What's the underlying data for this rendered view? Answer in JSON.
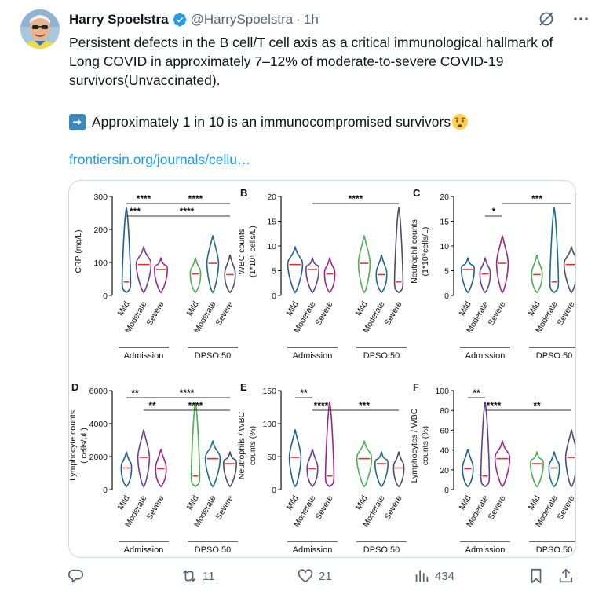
{
  "author": {
    "name": "Harry Spoelstra",
    "handle": "@HarrySpoelstra",
    "separator": "·",
    "time": "1h",
    "avatar_icon": "avatar-photo",
    "verified_icon": "verified-badge-icon"
  },
  "tweet": {
    "text": "Persistent defects in the B cell/T cell axis as a critical immunological hallmark of Long COVID in approximately 7–12% of moderate-to-severe COVID-19 survivors(Unvaccinated).",
    "line2": "Approximately 1 in 10 is an immunocompromised survivors",
    "line2_prefix_icon": "right-arrow-emoji",
    "line2_suffix_icon": "worried-face-emoji",
    "link": "frontiersin.org/journals/cellu…"
  },
  "header_icons": [
    "grok-icon",
    "more-icon"
  ],
  "actions": {
    "reply": {
      "icon": "reply-icon",
      "count": ""
    },
    "retweet": {
      "icon": "retweet-icon",
      "count": "11"
    },
    "like": {
      "icon": "heart-icon",
      "count": "21"
    },
    "views": {
      "icon": "views-icon",
      "count": "434"
    },
    "bookmark": {
      "icon": "bookmark-icon",
      "count": ""
    },
    "share": {
      "icon": "share-icon",
      "count": ""
    }
  },
  "colors": {
    "text": "#0f1419",
    "secondary": "#536471",
    "link": "#1d9bf0",
    "verified": "#1d9bf0",
    "mild": "#1f5f8b",
    "moderate": "#6a3d8f",
    "severe": "#a0238a",
    "dpso_mild": "#4caf50",
    "dpso_moderate": "#1a6b8a",
    "dpso_severe": "#4b4b6b",
    "median": "#e0312e"
  },
  "figure": {
    "categories": [
      "Mild",
      "Moderate",
      "Severe",
      "Mild",
      "Moderate",
      "Severe"
    ],
    "groups": [
      "Admission",
      "DPSO 50"
    ],
    "panels": [
      {
        "letter": "",
        "ylabel": [
          "CRP (mg/L)"
        ],
        "ticks": [
          "300",
          "200",
          "100",
          "0"
        ],
        "sig": [
          {
            "label": "****",
            "from": 0,
            "to": 2,
            "level": 0
          },
          {
            "label": "***",
            "from": 0,
            "to": 1,
            "level": 1
          },
          {
            "label": "****",
            "from": 2,
            "to": 5,
            "level": 0
          },
          {
            "label": "****",
            "from": 1,
            "to": 5,
            "level": 1
          }
        ]
      },
      {
        "letter": "B",
        "ylabel": [
          "WBC counts",
          "(1*10⁹ cells/L)"
        ],
        "ticks": [
          "20",
          "15",
          "10",
          "5",
          "0"
        ],
        "sig": [
          {
            "label": "****",
            "from": 1,
            "to": 5,
            "level": 0
          }
        ]
      },
      {
        "letter": "C",
        "ylabel": [
          "Neutrophil counts",
          "(1*10⁹cells/L)"
        ],
        "ticks": [
          "20",
          "15",
          "10",
          "5",
          "0"
        ],
        "sig": [
          {
            "label": "***",
            "from": 2,
            "to": 5,
            "level": 0
          },
          {
            "label": "*",
            "from": 1,
            "to": 2,
            "level": 1
          }
        ]
      },
      {
        "letter": "D",
        "ylabel": [
          "Lymphocyte counts",
          "( cells/μL)"
        ],
        "ticks": [
          "6000",
          "4000",
          "2000",
          "0"
        ],
        "sig": [
          {
            "label": "****",
            "from": 1,
            "to": 5,
            "level": 0
          },
          {
            "label": "**",
            "from": 0,
            "to": 1,
            "level": 0
          },
          {
            "label": "**",
            "from": 1,
            "to": 2,
            "level": 1
          },
          {
            "label": "****",
            "from": 2,
            "to": 5,
            "level": 1
          }
        ]
      },
      {
        "letter": "E",
        "ylabel": [
          "Neutrophils / WBC",
          "counts (%)"
        ],
        "ticks": [
          "150",
          "100",
          "50",
          "0"
        ],
        "sig": [
          {
            "label": "**",
            "from": 0,
            "to": 1,
            "level": 0
          },
          {
            "label": "****",
            "from": 1,
            "to": 2,
            "level": 1
          },
          {
            "label": "***",
            "from": 2,
            "to": 5,
            "level": 1
          }
        ]
      },
      {
        "letter": "F",
        "ylabel": [
          "Lymphocytes / WBC",
          "counts (%)"
        ],
        "ticks": [
          "100",
          "80",
          "60",
          "40",
          "20",
          "0"
        ],
        "sig": [
          {
            "label": "**",
            "from": 0,
            "to": 1,
            "level": 0
          },
          {
            "label": "****",
            "from": 1,
            "to": 2,
            "level": 1
          },
          {
            "label": "**",
            "from": 2,
            "to": 5,
            "level": 1
          }
        ]
      }
    ]
  }
}
